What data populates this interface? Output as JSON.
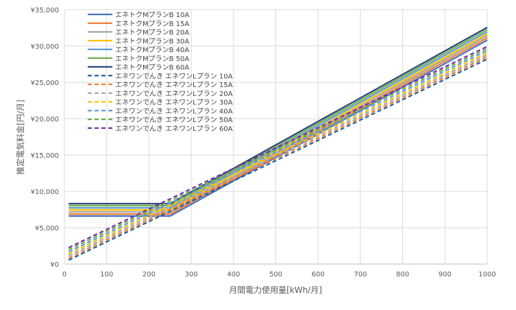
{
  "chart_data": {
    "type": "line",
    "xlabel": "月間電力使用量[kWh/月]",
    "ylabel": "推定電気料金[円/月]",
    "xlim": [
      0,
      1000
    ],
    "ylim": [
      0,
      35000
    ],
    "x_ticks": [
      "0",
      "100",
      "200",
      "300",
      "400",
      "500",
      "600",
      "700",
      "800",
      "900",
      "1000"
    ],
    "y_ticks": [
      "¥0",
      "¥5,000",
      "¥10,000",
      "¥15,000",
      "¥20,000",
      "¥25,000",
      "¥30,000",
      "¥35,000"
    ],
    "grid": true,
    "legend_position": "top-left",
    "series": [
      {
        "name": "エネトクMプランB 10A",
        "color": "#4472c4",
        "dash": "solid",
        "points": [
          [
            10,
            6600
          ],
          [
            250,
            6600
          ],
          [
            1000,
            30800
          ]
        ]
      },
      {
        "name": "エネトクMプランB 15A",
        "color": "#ed7d31",
        "dash": "solid",
        "points": [
          [
            10,
            6880
          ],
          [
            250,
            6880
          ],
          [
            1000,
            31100
          ]
        ]
      },
      {
        "name": "エネトクMプランB 20A",
        "color": "#a5a5a5",
        "dash": "solid",
        "points": [
          [
            10,
            7170
          ],
          [
            250,
            7170
          ],
          [
            1000,
            31400
          ]
        ]
      },
      {
        "name": "エネトクMプランB 30A",
        "color": "#ffc000",
        "dash": "solid",
        "points": [
          [
            10,
            7450
          ],
          [
            250,
            7450
          ],
          [
            1000,
            31650
          ]
        ]
      },
      {
        "name": "エネトクMプランB 40A",
        "color": "#5b9bd5",
        "dash": "solid",
        "points": [
          [
            10,
            7730
          ],
          [
            250,
            7730
          ],
          [
            1000,
            31950
          ]
        ]
      },
      {
        "name": "エネトクMプランB 50A",
        "color": "#70ad47",
        "dash": "solid",
        "points": [
          [
            10,
            8020
          ],
          [
            250,
            8020
          ],
          [
            1000,
            32250
          ]
        ]
      },
      {
        "name": "エネトクMプランB 60A",
        "color": "#264478",
        "dash": "solid",
        "points": [
          [
            10,
            8300
          ],
          [
            250,
            8300
          ],
          [
            1000,
            32550
          ]
        ]
      },
      {
        "name": "エネワンでんき エネワンLプラン 10A",
        "color": "#255e91",
        "dash": "dashed",
        "points": [
          [
            10,
            550
          ],
          [
            1000,
            28200
          ]
        ]
      },
      {
        "name": "エネワンでんき エネワンLプラン 15A",
        "color": "#ed7d31",
        "dash": "dashed",
        "points": [
          [
            10,
            830
          ],
          [
            1000,
            28500
          ]
        ]
      },
      {
        "name": "エネワンでんき エネワンLプラン 20A",
        "color": "#a5a5a5",
        "dash": "dashed",
        "points": [
          [
            10,
            1120
          ],
          [
            1000,
            28780
          ]
        ]
      },
      {
        "name": "エネワンでんき エネワンLプラン 30A",
        "color": "#ffc000",
        "dash": "dashed",
        "points": [
          [
            10,
            1400
          ],
          [
            1000,
            29060
          ]
        ]
      },
      {
        "name": "エネワンでんき エネワンLプラン 40A",
        "color": "#5b9bd5",
        "dash": "dashed",
        "points": [
          [
            10,
            1680
          ],
          [
            1000,
            29350
          ]
        ]
      },
      {
        "name": "エネワンでんき エネワンLプラン 50A",
        "color": "#70ad47",
        "dash": "dashed",
        "points": [
          [
            10,
            1970
          ],
          [
            1000,
            29630
          ]
        ]
      },
      {
        "name": "エネワンでんき エネワンLプラン 60A",
        "color": "#7030a0",
        "dash": "dashed",
        "points": [
          [
            10,
            2250
          ],
          [
            1000,
            29920
          ]
        ]
      }
    ]
  }
}
